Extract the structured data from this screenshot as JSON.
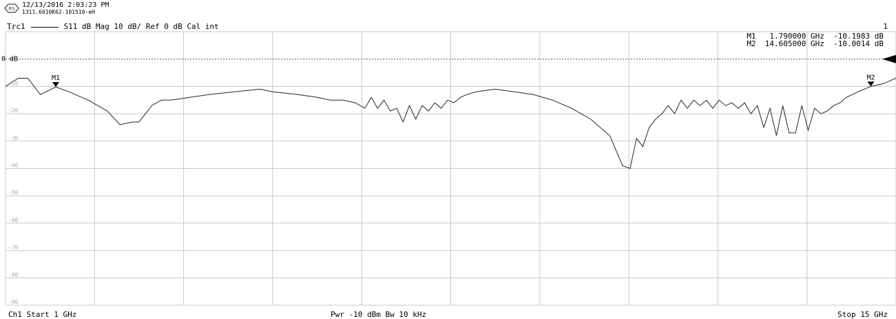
{
  "header": {
    "timestamp": "12/13/2016 2:03:23 PM",
    "serial": "1311.6010K62-101510-eH"
  },
  "trace": {
    "name": "Trc1",
    "desc": "S11  dB Mag  10 dB/ Ref 0 dB  Cal int",
    "channel_num": "1",
    "ref_label": "0 dB"
  },
  "markers": {
    "m1": {
      "text": "M1   1.790000 GHz  -10.1983 dB"
    },
    "m2": {
      "text": "M2  14.605000 GHz  -10.0014 dB"
    }
  },
  "footer": {
    "start": "Ch1  Start  1 GHz",
    "mid": "Pwr  -10 dBm  Bw  10 kHz",
    "stop": "Stop  15 GHz"
  },
  "colors": {
    "trace": "#222222",
    "grid": "#c8c8c8",
    "ref": "#555555"
  },
  "chart_data": {
    "type": "line",
    "title": "S11  dB Mag  10 dB/ Ref 0 dB  Cal int",
    "xlabel": "",
    "ylabel": "",
    "xlim": [
      1,
      15
    ],
    "ylim": [
      -90,
      10
    ],
    "yticks": [
      10,
      -10,
      -20,
      -30,
      -40,
      -50,
      -60,
      -70,
      -80,
      -90
    ],
    "x_divisions": 10,
    "grid": true,
    "series": [
      {
        "name": "Trc1",
        "x": [
          1.0,
          1.2,
          1.35,
          1.55,
          1.79,
          2.0,
          2.3,
          2.6,
          2.8,
          3.0,
          3.1,
          3.2,
          3.3,
          3.45,
          3.6,
          3.9,
          4.2,
          4.6,
          5.0,
          5.2,
          5.6,
          5.9,
          6.1,
          6.3,
          6.5,
          6.65,
          6.75,
          6.85,
          6.95,
          7.05,
          7.15,
          7.25,
          7.35,
          7.45,
          7.55,
          7.65,
          7.75,
          7.85,
          7.95,
          8.05,
          8.15,
          8.25,
          8.4,
          8.7,
          9.0,
          9.3,
          9.6,
          9.9,
          10.2,
          10.5,
          10.7,
          10.82,
          10.92,
          11.02,
          11.12,
          11.22,
          11.32,
          11.42,
          11.52,
          11.62,
          11.72,
          11.82,
          11.92,
          12.02,
          12.12,
          12.22,
          12.32,
          12.42,
          12.52,
          12.62,
          12.72,
          12.82,
          12.92,
          13.02,
          13.12,
          13.22,
          13.32,
          13.42,
          13.52,
          13.62,
          13.72,
          13.82,
          13.92,
          14.02,
          14.12,
          14.22,
          14.4,
          14.605,
          14.8,
          15.0
        ],
        "values": [
          -10,
          -7,
          -7,
          -13,
          -10.2,
          -12,
          -15,
          -19,
          -24,
          -23,
          -23,
          -20,
          -17,
          -15,
          -15,
          -14,
          -13,
          -12,
          -11,
          -12,
          -13,
          -14,
          -15,
          -15,
          -16,
          -18,
          -14,
          -18,
          -15,
          -19,
          -18,
          -23,
          -17,
          -22,
          -17,
          -19,
          -16,
          -18,
          -15,
          -16,
          -14,
          -13,
          -12,
          -11,
          -12,
          -13,
          -15,
          -18,
          -22,
          -28,
          -39,
          -40,
          -29,
          -32,
          -25,
          -22,
          -20,
          -17,
          -20,
          -15,
          -18,
          -15,
          -17,
          -15,
          -18,
          -15,
          -17,
          -16,
          -18,
          -16,
          -20,
          -17,
          -25,
          -18,
          -28,
          -17,
          -27,
          -27,
          -17,
          -26,
          -18,
          -20,
          -19,
          -17,
          -16,
          -14,
          -12,
          -10.0,
          -9,
          -7
        ]
      }
    ],
    "markers": [
      {
        "label": "M1",
        "x": 1.79,
        "y": -10.1983
      },
      {
        "label": "M2",
        "x": 14.605,
        "y": -10.0014
      }
    ]
  }
}
